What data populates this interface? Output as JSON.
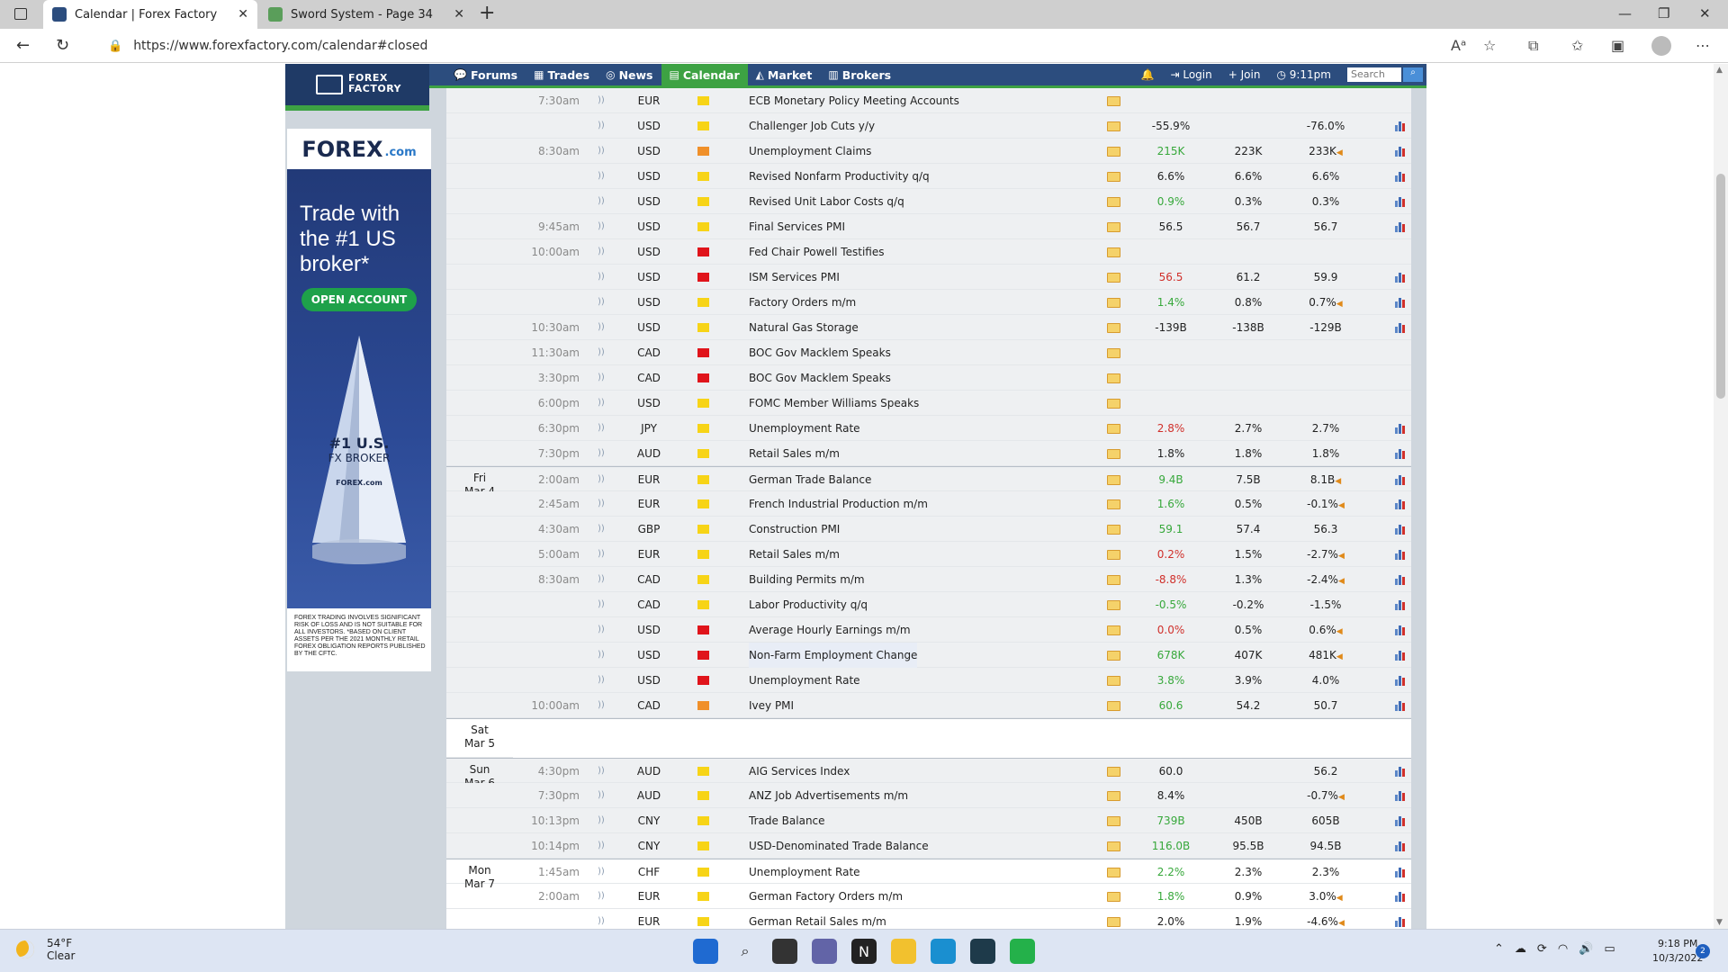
{
  "browser": {
    "tabs": [
      {
        "title": "Calendar | Forex Factory",
        "active": true
      },
      {
        "title": "Sword System - Page 34",
        "active": false
      }
    ],
    "url": "https://www.forexfactory.com/calendar#closed",
    "reader_icon": "Aᵃ"
  },
  "ff": {
    "logo_line1": "FOREX",
    "logo_line2": "FACTORY",
    "nav": [
      "Forums",
      "Trades",
      "News",
      "Calendar",
      "Market",
      "Brokers"
    ],
    "nav_selected": "Calendar",
    "login": "Login",
    "join": "Join",
    "time": "9:11pm",
    "search_placeholder": "Search"
  },
  "ad": {
    "brand": "FOREX",
    "brand_suffix": ".com",
    "tagline": "Trade with the #1 US broker*",
    "cta": "OPEN ACCOUNT",
    "award_line1": "#1 U.S.",
    "award_line2": "FX BROKER",
    "award_brand": "FOREX.com",
    "disclaimer": "FOREX TRADING INVOLVES SIGNIFICANT RISK OF LOSS AND IS NOT SUITABLE FOR ALL INVESTORS. *BASED ON CLIENT ASSETS PER THE 2021 MONTHLY RETAIL FOREX OBLIGATION REPORTS PUBLISHED BY THE CFTC."
  },
  "calendar": {
    "rows": [
      {
        "date": "",
        "time": "7:30am",
        "cur": "EUR",
        "impact": "yellow",
        "event": "ECB Monetary Policy Meeting Accounts",
        "actual": "",
        "actual_color": "plain",
        "forecast": "",
        "previous": "",
        "prev_flag": false,
        "graph": false,
        "shade": true
      },
      {
        "date": "",
        "time": "",
        "cur": "USD",
        "impact": "yellow",
        "event": "Challenger Job Cuts y/y",
        "actual": "-55.9%",
        "actual_color": "plain",
        "forecast": "",
        "previous": "-76.0%",
        "prev_flag": false,
        "graph": true,
        "shade": true
      },
      {
        "date": "",
        "time": "8:30am",
        "cur": "USD",
        "impact": "orange",
        "event": "Unemployment Claims",
        "actual": "215K",
        "actual_color": "green",
        "forecast": "223K",
        "previous": "233K",
        "prev_flag": true,
        "graph": true,
        "shade": true
      },
      {
        "date": "",
        "time": "",
        "cur": "USD",
        "impact": "yellow",
        "event": "Revised Nonfarm Productivity q/q",
        "actual": "6.6%",
        "actual_color": "plain",
        "forecast": "6.6%",
        "previous": "6.6%",
        "prev_flag": false,
        "graph": true,
        "shade": true
      },
      {
        "date": "",
        "time": "",
        "cur": "USD",
        "impact": "yellow",
        "event": "Revised Unit Labor Costs q/q",
        "actual": "0.9%",
        "actual_color": "green",
        "forecast": "0.3%",
        "previous": "0.3%",
        "prev_flag": false,
        "graph": true,
        "shade": true
      },
      {
        "date": "",
        "time": "9:45am",
        "cur": "USD",
        "impact": "yellow",
        "event": "Final Services PMI",
        "actual": "56.5",
        "actual_color": "plain",
        "forecast": "56.7",
        "previous": "56.7",
        "prev_flag": false,
        "graph": true,
        "shade": true
      },
      {
        "date": "",
        "time": "10:00am",
        "cur": "USD",
        "impact": "red",
        "event": "Fed Chair Powell Testifies",
        "actual": "",
        "actual_color": "plain",
        "forecast": "",
        "previous": "",
        "prev_flag": false,
        "graph": false,
        "shade": true
      },
      {
        "date": "",
        "time": "",
        "cur": "USD",
        "impact": "red",
        "event": "ISM Services PMI",
        "actual": "56.5",
        "actual_color": "red",
        "forecast": "61.2",
        "previous": "59.9",
        "prev_flag": false,
        "graph": true,
        "shade": true
      },
      {
        "date": "",
        "time": "",
        "cur": "USD",
        "impact": "yellow",
        "event": "Factory Orders m/m",
        "actual": "1.4%",
        "actual_color": "green",
        "forecast": "0.8%",
        "previous": "0.7%",
        "prev_flag": true,
        "graph": true,
        "shade": true
      },
      {
        "date": "",
        "time": "10:30am",
        "cur": "USD",
        "impact": "yellow",
        "event": "Natural Gas Storage",
        "actual": "-139B",
        "actual_color": "plain",
        "forecast": "-138B",
        "previous": "-129B",
        "prev_flag": false,
        "graph": true,
        "shade": true
      },
      {
        "date": "",
        "time": "11:30am",
        "cur": "CAD",
        "impact": "red",
        "event": "BOC Gov Macklem Speaks",
        "actual": "",
        "actual_color": "plain",
        "forecast": "",
        "previous": "",
        "prev_flag": false,
        "graph": false,
        "shade": true
      },
      {
        "date": "",
        "time": "3:30pm",
        "cur": "CAD",
        "impact": "red",
        "event": "BOC Gov Macklem Speaks",
        "actual": "",
        "actual_color": "plain",
        "forecast": "",
        "previous": "",
        "prev_flag": false,
        "graph": false,
        "shade": true
      },
      {
        "date": "",
        "time": "6:00pm",
        "cur": "USD",
        "impact": "yellow",
        "event": "FOMC Member Williams Speaks",
        "actual": "",
        "actual_color": "plain",
        "forecast": "",
        "previous": "",
        "prev_flag": false,
        "graph": false,
        "shade": true
      },
      {
        "date": "",
        "time": "6:30pm",
        "cur": "JPY",
        "impact": "yellow",
        "event": "Unemployment Rate",
        "actual": "2.8%",
        "actual_color": "red",
        "forecast": "2.7%",
        "previous": "2.7%",
        "prev_flag": false,
        "graph": true,
        "shade": true
      },
      {
        "date": "",
        "time": "7:30pm",
        "cur": "AUD",
        "impact": "yellow",
        "event": "Retail Sales m/m",
        "actual": "1.8%",
        "actual_color": "plain",
        "forecast": "1.8%",
        "previous": "1.8%",
        "prev_flag": false,
        "graph": true,
        "shade": true
      },
      {
        "date": "Fri\nMar 4",
        "time": "2:00am",
        "cur": "EUR",
        "impact": "yellow",
        "event": "German Trade Balance",
        "actual": "9.4B",
        "actual_color": "green",
        "forecast": "7.5B",
        "previous": "8.1B",
        "prev_flag": true,
        "graph": true,
        "shade": true,
        "daystart": true
      },
      {
        "date": "",
        "time": "2:45am",
        "cur": "EUR",
        "impact": "yellow",
        "event": "French Industrial Production m/m",
        "actual": "1.6%",
        "actual_color": "green",
        "forecast": "0.5%",
        "previous": "-0.1%",
        "prev_flag": true,
        "graph": true,
        "shade": true
      },
      {
        "date": "",
        "time": "4:30am",
        "cur": "GBP",
        "impact": "yellow",
        "event": "Construction PMI",
        "actual": "59.1",
        "actual_color": "green",
        "forecast": "57.4",
        "previous": "56.3",
        "prev_flag": false,
        "graph": true,
        "shade": true
      },
      {
        "date": "",
        "time": "5:00am",
        "cur": "EUR",
        "impact": "yellow",
        "event": "Retail Sales m/m",
        "actual": "0.2%",
        "actual_color": "red",
        "forecast": "1.5%",
        "previous": "-2.7%",
        "prev_flag": true,
        "graph": true,
        "shade": true
      },
      {
        "date": "",
        "time": "8:30am",
        "cur": "CAD",
        "impact": "yellow",
        "event": "Building Permits m/m",
        "actual": "-8.8%",
        "actual_color": "red",
        "forecast": "1.3%",
        "previous": "-2.4%",
        "prev_flag": true,
        "graph": true,
        "shade": true
      },
      {
        "date": "",
        "time": "",
        "cur": "CAD",
        "impact": "yellow",
        "event": "Labor Productivity q/q",
        "actual": "-0.5%",
        "actual_color": "green",
        "forecast": "-0.2%",
        "previous": "-1.5%",
        "prev_flag": false,
        "graph": true,
        "shade": true
      },
      {
        "date": "",
        "time": "",
        "cur": "USD",
        "impact": "red",
        "event": "Average Hourly Earnings m/m",
        "actual": "0.0%",
        "actual_color": "red",
        "forecast": "0.5%",
        "previous": "0.6%",
        "prev_flag": true,
        "graph": true,
        "shade": true
      },
      {
        "date": "",
        "time": "",
        "cur": "USD",
        "impact": "red",
        "event": "Non-Farm Employment Change",
        "actual": "678K",
        "actual_color": "green",
        "forecast": "407K",
        "previous": "481K",
        "prev_flag": true,
        "graph": true,
        "shade": true,
        "highlight": true
      },
      {
        "date": "",
        "time": "",
        "cur": "USD",
        "impact": "red",
        "event": "Unemployment Rate",
        "actual": "3.8%",
        "actual_color": "green",
        "forecast": "3.9%",
        "previous": "4.0%",
        "prev_flag": false,
        "graph": true,
        "shade": true
      },
      {
        "date": "",
        "time": "10:00am",
        "cur": "CAD",
        "impact": "orange",
        "event": "Ivey PMI",
        "actual": "60.6",
        "actual_color": "green",
        "forecast": "54.2",
        "previous": "50.7",
        "prev_flag": false,
        "graph": true,
        "shade": true
      },
      {
        "date": "Sat\nMar 5",
        "empty": true,
        "daystart": true
      },
      {
        "date": "Sun\nMar 6",
        "time": "4:30pm",
        "cur": "AUD",
        "impact": "yellow",
        "event": "AIG Services Index",
        "actual": "60.0",
        "actual_color": "plain",
        "forecast": "",
        "previous": "56.2",
        "prev_flag": false,
        "graph": true,
        "shade": true,
        "daystart": true
      },
      {
        "date": "",
        "time": "7:30pm",
        "cur": "AUD",
        "impact": "yellow",
        "event": "ANZ Job Advertisements m/m",
        "actual": "8.4%",
        "actual_color": "plain",
        "forecast": "",
        "previous": "-0.7%",
        "prev_flag": true,
        "graph": true,
        "shade": true
      },
      {
        "date": "",
        "time": "10:13pm",
        "cur": "CNY",
        "impact": "yellow",
        "event": "Trade Balance",
        "actual": "739B",
        "actual_color": "green",
        "forecast": "450B",
        "previous": "605B",
        "prev_flag": false,
        "graph": true,
        "shade": true
      },
      {
        "date": "",
        "time": "10:14pm",
        "cur": "CNY",
        "impact": "yellow",
        "event": "USD-Denominated Trade Balance",
        "actual": "116.0B",
        "actual_color": "green",
        "forecast": "95.5B",
        "previous": "94.5B",
        "prev_flag": false,
        "graph": true,
        "shade": true
      },
      {
        "date": "Mon\nMar 7",
        "time": "1:45am",
        "cur": "CHF",
        "impact": "yellow",
        "event": "Unemployment Rate",
        "actual": "2.2%",
        "actual_color": "green",
        "forecast": "2.3%",
        "previous": "2.3%",
        "prev_flag": false,
        "graph": true,
        "shade": false,
        "daystart": true
      },
      {
        "date": "",
        "time": "2:00am",
        "cur": "EUR",
        "impact": "yellow",
        "event": "German Factory Orders m/m",
        "actual": "1.8%",
        "actual_color": "green",
        "forecast": "0.9%",
        "previous": "3.0%",
        "prev_flag": true,
        "graph": true,
        "shade": false
      },
      {
        "date": "",
        "time": "",
        "cur": "EUR",
        "impact": "yellow",
        "event": "German Retail Sales m/m",
        "actual": "2.0%",
        "actual_color": "plain",
        "forecast": "1.9%",
        "previous": "-4.6%",
        "prev_flag": true,
        "graph": true,
        "shade": false
      }
    ]
  },
  "taskbar": {
    "weather_temp": "54°F",
    "weather_desc": "Clear",
    "time": "9:18 PM",
    "date": "10/3/2022",
    "notif_count": "2"
  },
  "colors": {
    "impact_yellow": "#f7d417",
    "impact_orange": "#f0902a",
    "impact_red": "#e0141b",
    "ff_nav": "#2c4d7e",
    "ff_green": "#3da243"
  }
}
